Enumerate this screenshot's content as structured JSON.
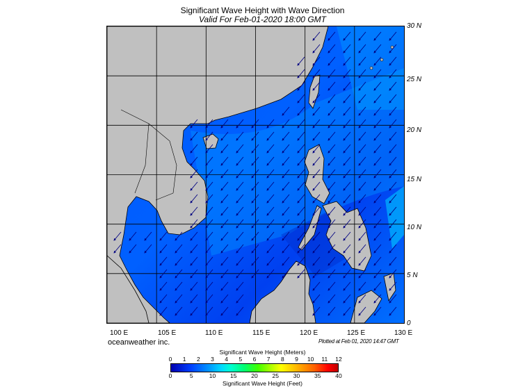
{
  "title": "Significant Wave Height with Wave Direction",
  "subtitle": "Valid For Feb-01-2020 18:00 GMT",
  "lat_labels": [
    "30 N",
    "25 N",
    "20 N",
    "15 N",
    "10 N",
    "5 N",
    "0"
  ],
  "lon_labels": [
    "100 E",
    "105 E",
    "110 E",
    "115 E",
    "120 E",
    "125 E",
    "130 E"
  ],
  "credit": "oceanweather inc.",
  "plotted": "Plotted at Feb 01, 2020 14:47 GMT",
  "colorbar": {
    "title_meters": "Significant Wave Height (Meters)",
    "title_feet": "Significant Wave Height (Feet)",
    "meters_ticks": [
      "0",
      "1",
      "2",
      "3",
      "4",
      "5",
      "6",
      "7",
      "8",
      "9",
      "10",
      "11",
      "12"
    ],
    "feet_ticks": [
      "0",
      "5",
      "10",
      "15",
      "20",
      "25",
      "30",
      "35",
      "40"
    ]
  },
  "colors": {
    "land": "#c0c0c0",
    "sea_deep": "#0038ff",
    "sea_mid": "#0070ff",
    "sea_light": "#00a8ff",
    "arrow": "#000080"
  },
  "wave_direction": "southwest"
}
